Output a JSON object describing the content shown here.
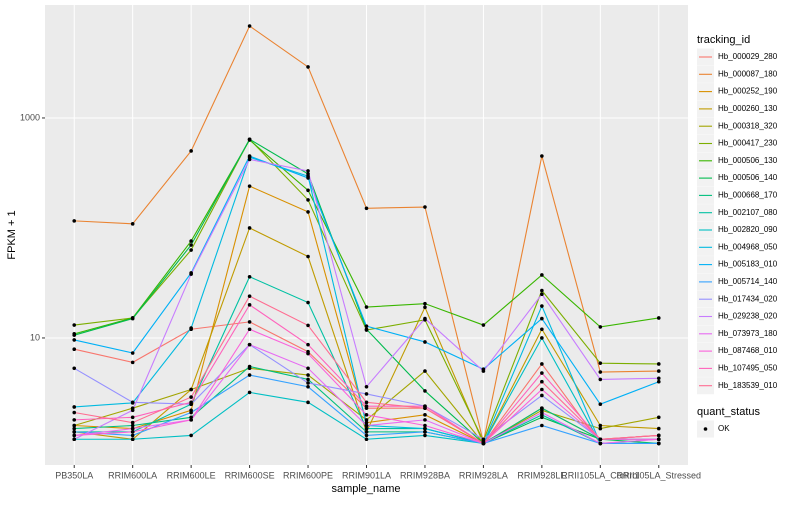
{
  "chart_data": {
    "type": "line",
    "x_label": "sample_name",
    "y_label": "FPKM + 1",
    "log_scale": true,
    "grid": true,
    "ylim": [
      0.7,
      10640
    ],
    "yticks": [
      10,
      1000
    ],
    "categories": [
      "PB350LA",
      "RRIM600LA",
      "RRIM600LE",
      "RRIM600SE",
      "RRIM600PE",
      "RRIM901LA",
      "RRIM928BA",
      "RRIM928LA",
      "RRIM928LE",
      "RRII105LA_Control",
      "RRII105LA_Stressed"
    ],
    "legend_title": "tracking_id",
    "legend_position": "right",
    "point_legend": {
      "title": "quant_status",
      "levels": [
        "OK"
      ],
      "color": "#000000"
    },
    "series": [
      {
        "name": "Hb_000029_280",
        "color": "#F8766D",
        "values": [
          7.9,
          6.0,
          12,
          14,
          7.5,
          2.3,
          2.3,
          1.1,
          5.8,
          1.1,
          1.2
        ]
      },
      {
        "name": "Hb_000087_180",
        "color": "#EA8331",
        "values": [
          116,
          109,
          501,
          6850,
          2910,
          151,
          155,
          1.13,
          451,
          4.9,
          5.0
        ]
      },
      {
        "name": "Hb_000252_190",
        "color": "#D89000",
        "values": [
          1.6,
          1.5,
          2.2,
          240,
          140,
          1.7,
          2.0,
          1.1,
          2.3,
          1.2,
          1.3
        ]
      },
      {
        "name": "Hb_000260_130",
        "color": "#C09B00",
        "values": [
          1.4,
          1.2,
          3.4,
          100,
          55,
          1.4,
          19,
          1.1,
          12,
          1.6,
          1.5
        ]
      },
      {
        "name": "Hb_000318_320",
        "color": "#A3A500",
        "values": [
          1.6,
          2.3,
          3.4,
          5.3,
          4.6,
          1.8,
          5.0,
          1.1,
          2.2,
          1.5,
          1.9
        ]
      },
      {
        "name": "Hb_000417_230",
        "color": "#7CAE00",
        "values": [
          13.1,
          15.2,
          63,
          640,
          180,
          11.8,
          14.6,
          1.16,
          27,
          5.9,
          5.8
        ]
      },
      {
        "name": "Hb_000506_130",
        "color": "#39B600",
        "values": [
          10.9,
          15.2,
          76,
          630,
          220,
          19.1,
          20.5,
          13.1,
          37.4,
          12.6,
          15.2
        ]
      },
      {
        "name": "Hb_000506_140",
        "color": "#00BB4E",
        "values": [
          10.6,
          15,
          70,
          640,
          310,
          12,
          3.3,
          1.1,
          1.9,
          1.2,
          1.1
        ]
      },
      {
        "name": "Hb_000668_170",
        "color": "#00BF7D",
        "values": [
          1.5,
          1.6,
          1.9,
          5.5,
          4.2,
          1.4,
          1.4,
          1.1,
          2.3,
          1.2,
          1.2
        ]
      },
      {
        "name": "Hb_002107_080",
        "color": "#00C1A3",
        "values": [
          1.4,
          1.4,
          2.5,
          36,
          21,
          1.5,
          1.5,
          1.1,
          2.0,
          1.1,
          1.1
        ]
      },
      {
        "name": "Hb_002820_090",
        "color": "#00BFC4",
        "values": [
          1.2,
          1.2,
          1.3,
          3.2,
          2.6,
          1.2,
          1.3,
          1.1,
          10,
          1.1,
          1.1
        ]
      },
      {
        "name": "Hb_004968_050",
        "color": "#00BAE0",
        "values": [
          2.36,
          2.57,
          12.3,
          440,
          296,
          1.6,
          1.5,
          1.1,
          19.5,
          1.1,
          1.1
        ]
      },
      {
        "name": "Hb_005183_010",
        "color": "#00B0F6",
        "values": [
          9.6,
          7.3,
          39,
          451,
          285,
          12.8,
          9.2,
          5.2,
          15,
          2.5,
          4.0
        ]
      },
      {
        "name": "Hb_005714_140",
        "color": "#35A2FF",
        "values": [
          1.4,
          1.3,
          2.1,
          4.6,
          3.6,
          1.3,
          1.4,
          1.1,
          1.6,
          1.1,
          1.1
        ]
      },
      {
        "name": "Hb_017434_020",
        "color": "#9590FF",
        "values": [
          5.3,
          2.6,
          2.5,
          8.7,
          3.9,
          3.1,
          2.4,
          1.2,
          3.0,
          1.2,
          1.2
        ]
      },
      {
        "name": "Hb_029238_020",
        "color": "#C77CFF",
        "values": [
          1.2,
          2.2,
          38,
          420,
          330,
          3.6,
          15,
          5.0,
          25,
          4.2,
          4.3
        ]
      },
      {
        "name": "Hb_073973_180",
        "color": "#E76BF3",
        "values": [
          1.3,
          1.5,
          1.8,
          8.7,
          5.3,
          1.6,
          1.8,
          1.1,
          2.1,
          1.1,
          1.2
        ]
      },
      {
        "name": "Hb_087468_010",
        "color": "#FA62DB",
        "values": [
          1.3,
          1.4,
          1.8,
          12,
          7.2,
          2.0,
          1.6,
          1.1,
          3.4,
          1.2,
          1.2
        ]
      },
      {
        "name": "Hb_107495_050",
        "color": "#FF62BC",
        "values": [
          1.8,
          1.9,
          2.6,
          20,
          8.7,
          2.4,
          2.4,
          1.1,
          4.8,
          1.2,
          1.3
        ]
      },
      {
        "name": "Hb_183539_010",
        "color": "#FF6C91",
        "values": [
          2.1,
          1.7,
          2.9,
          24,
          13,
          2.6,
          2.3,
          1.1,
          4.0,
          1.2,
          1.3
        ]
      }
    ]
  }
}
